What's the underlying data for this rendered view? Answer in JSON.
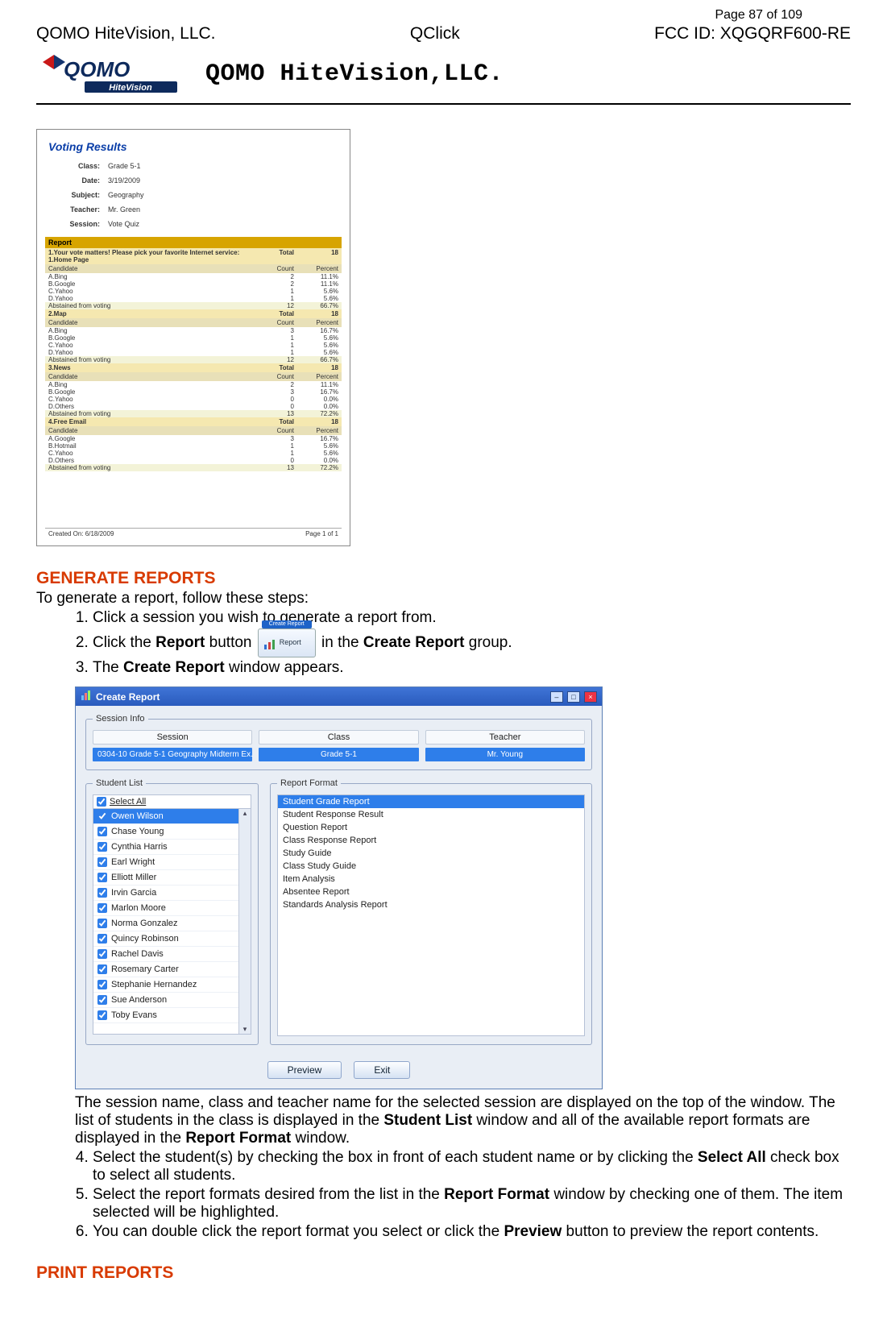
{
  "page_num_label": "Page 87 of 109",
  "header": {
    "left": "QOMO HiteVision, LLC.",
    "center": "QClick",
    "right": "FCC ID: XQGQRF600-RE",
    "company": "QOMO HiteVision,LLC."
  },
  "voting_report": {
    "title": "Voting Results",
    "meta": {
      "class_k": "Class:",
      "class_v": "Grade 5-1",
      "date_k": "Date:",
      "date_v": "3/19/2009",
      "subject_k": "Subject:",
      "subject_v": "Geography",
      "teacher_k": "Teacher:",
      "teacher_v": "Mr. Green",
      "session_k": "Session:",
      "session_v": "Vote Quiz"
    },
    "section_label": "Report",
    "cand_hdr": {
      "c1": "Candidate",
      "c2": "Count",
      "c3": "Percent"
    },
    "questions": [
      {
        "q": "1.Your vote matters! Please pick your favorite Internet service: 1.Home Page",
        "total_l": "Total",
        "total_v": "18",
        "rows": [
          [
            "A.Bing",
            "2",
            "11.1%"
          ],
          [
            "B.Google",
            "2",
            "11.1%"
          ],
          [
            "C.Yahoo",
            "1",
            "5.6%"
          ],
          [
            "D.Yahoo",
            "1",
            "5.6%"
          ]
        ],
        "abst": [
          "Abstained from voting",
          "12",
          "66.7%"
        ]
      },
      {
        "q": "2.Map",
        "total_l": "Total",
        "total_v": "18",
        "rows": [
          [
            "A.Bing",
            "3",
            "16.7%"
          ],
          [
            "B.Google",
            "1",
            "5.6%"
          ],
          [
            "C.Yahoo",
            "1",
            "5.6%"
          ],
          [
            "D.Yahoo",
            "1",
            "5.6%"
          ]
        ],
        "abst": [
          "Abstained from voting",
          "12",
          "66.7%"
        ]
      },
      {
        "q": "3.News",
        "total_l": "Total",
        "total_v": "18",
        "rows": [
          [
            "A.Bing",
            "2",
            "11.1%"
          ],
          [
            "B.Google",
            "3",
            "16.7%"
          ],
          [
            "C.Yahoo",
            "0",
            "0.0%"
          ],
          [
            "D.Others",
            "0",
            "0.0%"
          ]
        ],
        "abst": [
          "Abstained from voting",
          "13",
          "72.2%"
        ]
      },
      {
        "q": "4.Free Email",
        "total_l": "Total",
        "total_v": "18",
        "rows": [
          [
            "A.Google",
            "3",
            "16.7%"
          ],
          [
            "B.Hotmail",
            "1",
            "5.6%"
          ],
          [
            "C.Yahoo",
            "1",
            "5.6%"
          ],
          [
            "D.Others",
            "0",
            "0.0%"
          ]
        ],
        "abst": [
          "Abstained from voting",
          "13",
          "72.2%"
        ]
      }
    ],
    "footer_l": "Created On: 6/18/2009",
    "footer_r": "Page 1 of 1"
  },
  "sec_generate": "GENERATE REPORTS",
  "intro": "To generate a report, follow these steps:",
  "step1": "Click a session you wish to generate a report from.",
  "step2_a": "Click the ",
  "step2_b": "Report",
  "step2_c": "  button ",
  "step2_d": " in the ",
  "step2_e": "Create Report",
  "step2_f": " group.",
  "step3_a": "The ",
  "step3_b": "Create Report",
  "step3_c": " window appears.",
  "report_btn": {
    "group_label": "Create Report",
    "label": "Report"
  },
  "dialog": {
    "title": "Create Report",
    "session_info_legend": "Session Info",
    "heads": {
      "session": "Session",
      "class": "Class",
      "teacher": "Teacher"
    },
    "row": {
      "session": "0304-10 Grade 5-1 Geography Midterm Ex...",
      "class": "Grade 5-1",
      "teacher": "Mr. Young"
    },
    "student_list_legend": "Student List",
    "report_format_legend": "Report Format",
    "select_all": "Select All",
    "students": [
      "Owen Wilson",
      "Chase Young",
      "Cynthia Harris",
      "Earl Wright",
      "Elliott Miller",
      "Irvin Garcia",
      "Marlon Moore",
      "Norma Gonzalez",
      "Quincy Robinson",
      "Rachel Davis",
      "Rosemary Carter",
      "Stephanie Hernandez",
      "Sue Anderson",
      "Toby Evans"
    ],
    "formats": [
      "Student Grade Report",
      "Student Response Result",
      "Question Report",
      "Class Response Report",
      "Study Guide",
      "Class Study Guide",
      "Item Analysis",
      "Absentee Report",
      "Standards Analysis Report"
    ],
    "preview": "Preview",
    "exit": "Exit"
  },
  "after_dialog": {
    "p": "The session name, class and teacher name for the selected session are displayed on the top of the window. The list of students in the class is displayed in the ",
    "b1": "Student List",
    "p2": " window and all of the available report formats are displayed in the ",
    "b2": "Report Format",
    "p3": " window."
  },
  "step4": {
    "a": "Select the student(s) by checking the box in front of each student name or by clicking the ",
    "b": "Select All",
    "c": " check box to select all students."
  },
  "step5": {
    "a": "Select the report formats desired from the list in the ",
    "b": "Report Format",
    "c": " window by checking one of them. The item selected will be highlighted."
  },
  "step6": {
    "a": "You can double click the report format you select or click the ",
    "b": "Preview",
    "c": " button to preview the report contents."
  },
  "sec_print": "PRINT REPORTS"
}
